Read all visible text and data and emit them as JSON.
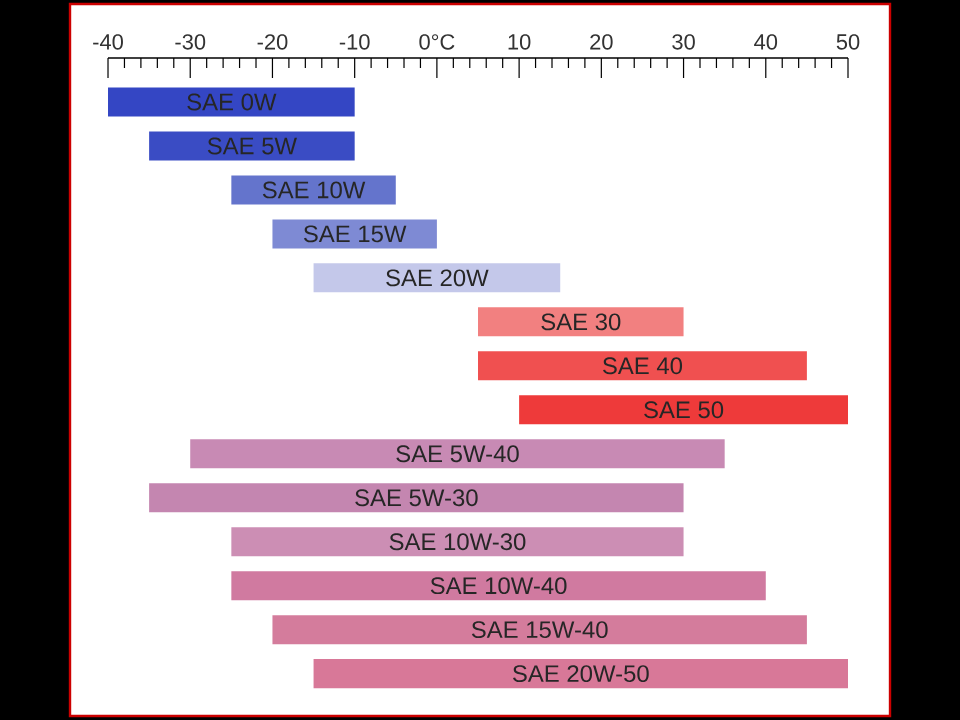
{
  "chart_data": {
    "type": "bar",
    "orientation": "horizontal",
    "categories": [
      "SAE 0W",
      "SAE 5W",
      "SAE 10W",
      "SAE 15W",
      "SAE 20W",
      "SAE 30",
      "SAE 40",
      "SAE 50",
      "SAE 5W-40",
      "SAE 5W-30",
      "SAE 10W-30",
      "SAE 10W-40",
      "SAE 15W-40",
      "SAE 20W-50"
    ],
    "base": [
      -40,
      -35,
      -25,
      -20,
      -15,
      5,
      5,
      10,
      -30,
      -35,
      -25,
      -25,
      -20,
      -15
    ],
    "values": [
      30,
      25,
      20,
      20,
      30,
      25,
      40,
      40,
      65,
      65,
      55,
      65,
      65,
      65
    ],
    "colors": [
      "#3446c4",
      "#3a4cc4",
      "#6474cc",
      "#7e8ad4",
      "#c4c8ea",
      "#f28080",
      "#f05050",
      "#ee3a3a",
      "#c88ab4",
      "#c486b0",
      "#cc8eb4",
      "#d07aa0",
      "#d47c9c",
      "#d87898"
    ],
    "xlim": [
      -40,
      50
    ],
    "xticks": [
      -40,
      -30,
      -20,
      -10,
      {
        "value": 0,
        "label": "0°C"
      },
      10,
      20,
      30,
      40,
      50
    ],
    "grid": false
  }
}
